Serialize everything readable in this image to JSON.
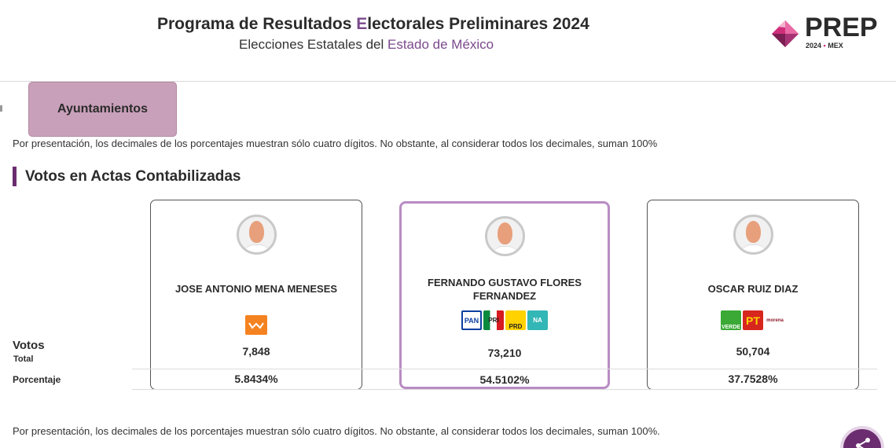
{
  "header": {
    "title_pre": "Programa de Resultados ",
    "title_accent": "E",
    "title_post": "lectorales Preliminares 2024",
    "subtitle_pre": "Elecciones Estatales del ",
    "subtitle_accent": "Estado de México"
  },
  "logo": {
    "text": "PREP",
    "year": "2024",
    "dot": "•",
    "state": "MEX"
  },
  "tab": {
    "label": "Ayuntamientos"
  },
  "note_top": "Por presentación, los decimales de los porcentajes muestran sólo cuatro dígitos. No obstante, al considerar todos los decimales, suman 100%",
  "section_title": "Votos en Actas Contabilizadas",
  "labels": {
    "votos": "Votos",
    "total": "Total",
    "porcentaje": "Porcentaje"
  },
  "candidates": [
    {
      "name": "JOSE ANTONIO MENA MENESES",
      "votes": "7,848",
      "percentage": "5.8434%",
      "parties": [
        "MC"
      ]
    },
    {
      "name_line1": "FERNANDO GUSTAVO FLORES",
      "name_line2": "FERNANDEZ",
      "votes": "73,210",
      "percentage": "54.5102%",
      "parties": [
        "PAN",
        "PRI",
        "PRD",
        "NA"
      ]
    },
    {
      "name": "OSCAR RUIZ DIAZ",
      "votes": "50,704",
      "percentage": "37.7528%",
      "parties": [
        "VERDE",
        "PT",
        "morena"
      ]
    }
  ],
  "note_bottom": "Por presentación, los decimales de los porcentajes muestran sólo cuatro dígitos. No obstante, al considerar todos los decimales, suman 100%.",
  "colors": {
    "accent": "#6b2d6f",
    "tab_bg": "#c9a0b9",
    "highlight_border": "#b98cc4",
    "brand_pink": "#d02e7b"
  }
}
